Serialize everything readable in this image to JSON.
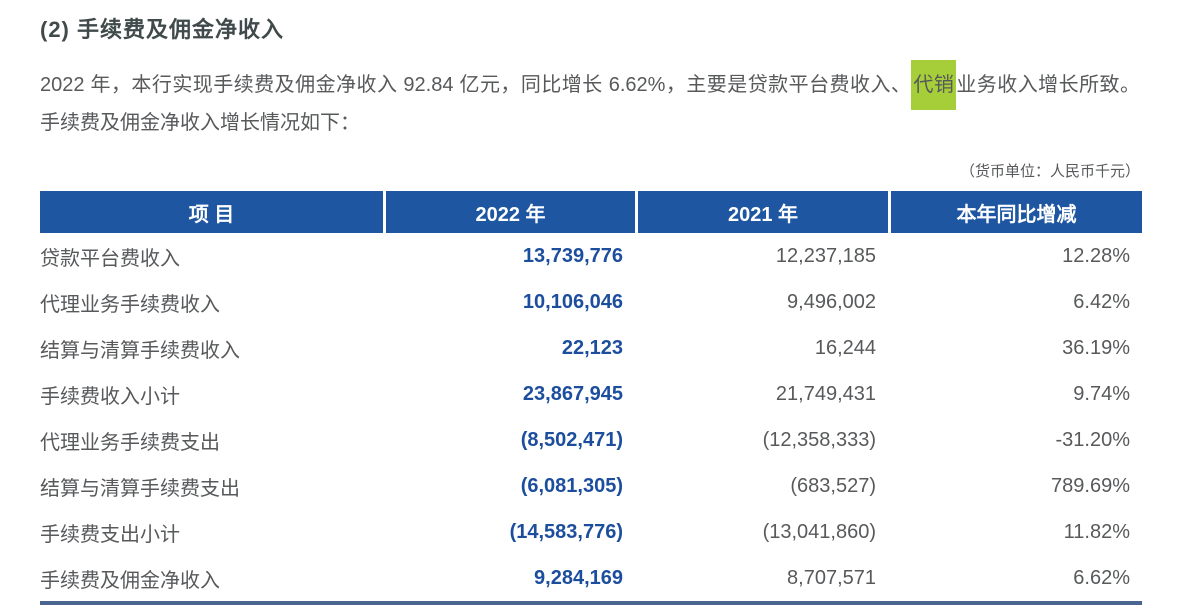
{
  "page": {
    "title": "(2) 手续费及佣金净收入",
    "paragraph": {
      "before": "2022 年，本行实现手续费及佣金净收入 92.84 亿元，同比增长 6.62%，主要是贷款平台费收入、",
      "highlight": "代销",
      "after": "业务收入增长所致。",
      "line2": "手续费及佣金净收入增长情况如下："
    },
    "unit_note": "（货币单位：人民币千元）"
  },
  "table": {
    "headers": [
      "项 目",
      "2022 年",
      "2021 年",
      "本年同比增减"
    ],
    "rows": [
      {
        "label": "贷款平台费收入",
        "indent": 2,
        "v2022": "13,739,776",
        "v2021": "12,237,185",
        "change": "12.28%"
      },
      {
        "label": "代理业务手续费收入",
        "indent": 2,
        "v2022": "10,106,046",
        "v2021": "9,496,002",
        "change": "6.42%"
      },
      {
        "label": "结算与清算手续费收入",
        "indent": 2,
        "v2022": "22,123",
        "v2021": "16,244",
        "change": "36.19%"
      },
      {
        "label": "手续费收入小计",
        "indent": 1,
        "v2022": "23,867,945",
        "v2021": "21,749,431",
        "change": "9.74%"
      },
      {
        "label": "代理业务手续费支出",
        "indent": 2,
        "v2022": "(8,502,471)",
        "v2021": "(12,358,333)",
        "change": "-31.20%"
      },
      {
        "label": "结算与清算手续费支出",
        "indent": 2,
        "v2022": "(6,081,305)",
        "v2021": "(683,527)",
        "change": "789.69%"
      },
      {
        "label": "手续费支出小计",
        "indent": 1,
        "v2022": "(14,583,776)",
        "v2021": "(13,041,860)",
        "change": "11.82%"
      },
      {
        "label": "手续费及佣金净收入",
        "indent": 0,
        "v2022": "9,284,169",
        "v2021": "8,707,571",
        "change": "6.62%"
      }
    ]
  },
  "colors": {
    "header_bg": "#1e56a2",
    "value_2022": "#1c4e9d",
    "highlight": "#a6ce39",
    "bottom_rule": "#4a6590",
    "text": "#57595b",
    "title": "#404a4a"
  }
}
